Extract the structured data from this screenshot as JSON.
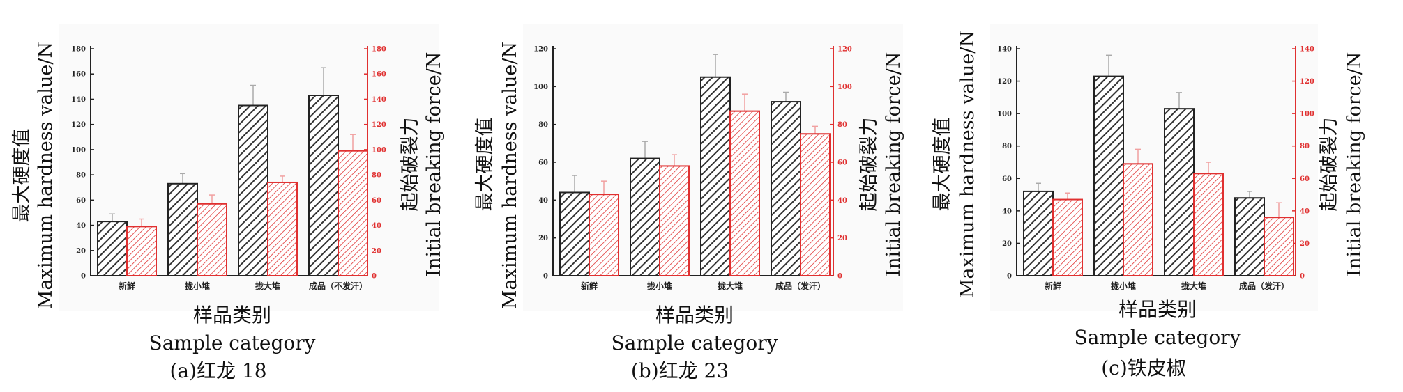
{
  "chart_data": [
    {
      "type": "bar",
      "caption": "(a)红龙 18",
      "xlabel_cn": "样品类别",
      "xlabel_en": "Sample category",
      "ylabel_left_cn": "最大硬度值",
      "ylabel_left_en": "Maximum hardness value/N",
      "ylabel_right_cn": "起始破裂力",
      "ylabel_right_en": "Initial breaking force/N",
      "categories": [
        "新鲜",
        "拢小堆",
        "拢大堆",
        "成品（不发汗）"
      ],
      "ylim": [
        0,
        180
      ],
      "yticks": [
        0,
        20,
        40,
        60,
        80,
        100,
        120,
        140,
        160,
        180
      ],
      "series": [
        {
          "axis": "left",
          "color": "#333333",
          "values": [
            43,
            73,
            135,
            143
          ],
          "errors": [
            6,
            8,
            16,
            22
          ]
        },
        {
          "axis": "right",
          "color": "#e03030",
          "values": [
            39,
            57,
            74,
            99
          ],
          "errors": [
            6,
            7,
            5,
            13
          ]
        }
      ]
    },
    {
      "type": "bar",
      "caption": "(b)红龙 23",
      "xlabel_cn": "样品类别",
      "xlabel_en": "Sample category",
      "ylabel_left_cn": "最大硬度值",
      "ylabel_left_en": "Maximum hardness value/N",
      "ylabel_right_cn": "起始破裂力",
      "ylabel_right_en": "Initial breaking force/N",
      "categories": [
        "新鲜",
        "拢小堆",
        "拢大堆",
        "成品（发汗）"
      ],
      "ylim": [
        0,
        120
      ],
      "yticks": [
        0,
        20,
        40,
        60,
        80,
        100,
        120
      ],
      "series": [
        {
          "axis": "left",
          "color": "#333333",
          "values": [
            44,
            62,
            105,
            92
          ],
          "errors": [
            9,
            9,
            12,
            5
          ]
        },
        {
          "axis": "right",
          "color": "#e03030",
          "values": [
            43,
            58,
            87,
            75
          ],
          "errors": [
            7,
            6,
            9,
            4
          ]
        }
      ]
    },
    {
      "type": "bar",
      "caption": "(c)铁皮椒",
      "xlabel_cn": "样品类别",
      "xlabel_en": "Sample category",
      "ylabel_left_cn": "最大硬度值",
      "ylabel_left_en": "Maximum hardness value/N",
      "ylabel_right_cn": "起始破裂力",
      "ylabel_right_en": "Initial breaking force/N",
      "categories": [
        "新鲜",
        "拢小堆",
        "拢大堆",
        "成品（发汗）"
      ],
      "ylim": [
        0,
        140
      ],
      "yticks": [
        0,
        20,
        40,
        60,
        80,
        100,
        120,
        140
      ],
      "series": [
        {
          "axis": "left",
          "color": "#333333",
          "values": [
            52,
            123,
            103,
            48
          ],
          "errors": [
            5,
            13,
            10,
            4
          ]
        },
        {
          "axis": "right",
          "color": "#e03030",
          "values": [
            47,
            69,
            63,
            36
          ],
          "errors": [
            4,
            9,
            7,
            9
          ]
        }
      ]
    }
  ]
}
